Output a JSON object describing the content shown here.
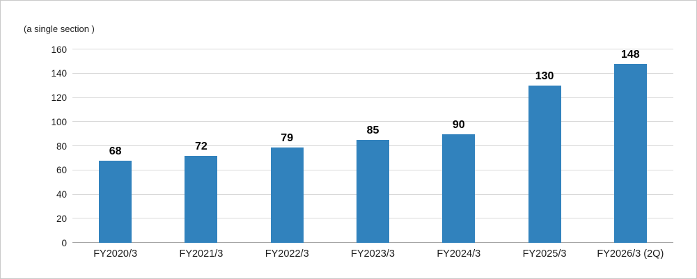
{
  "chart_data": {
    "type": "bar",
    "title": "",
    "unit_label": "(a single section )",
    "categories": [
      "FY2020/3",
      "FY2021/3",
      "FY2022/3",
      "FY2023/3",
      "FY2024/3",
      "FY2025/3",
      "FY2026/3 (2Q)"
    ],
    "values": [
      68,
      72,
      79,
      85,
      90,
      130,
      148
    ],
    "ylim": [
      0,
      160
    ],
    "yticks": [
      0,
      20,
      40,
      60,
      80,
      100,
      120,
      140,
      160
    ],
    "grid": true,
    "legend": "none",
    "colors": {
      "bar": "#3182BD",
      "gridline": "#D9D9D9",
      "axis_line": "#A6A6A6",
      "text": "#1A1A1A",
      "value_label": "#000000",
      "frame_border": "#C9C9C9",
      "background": "#FFFFFF"
    }
  }
}
